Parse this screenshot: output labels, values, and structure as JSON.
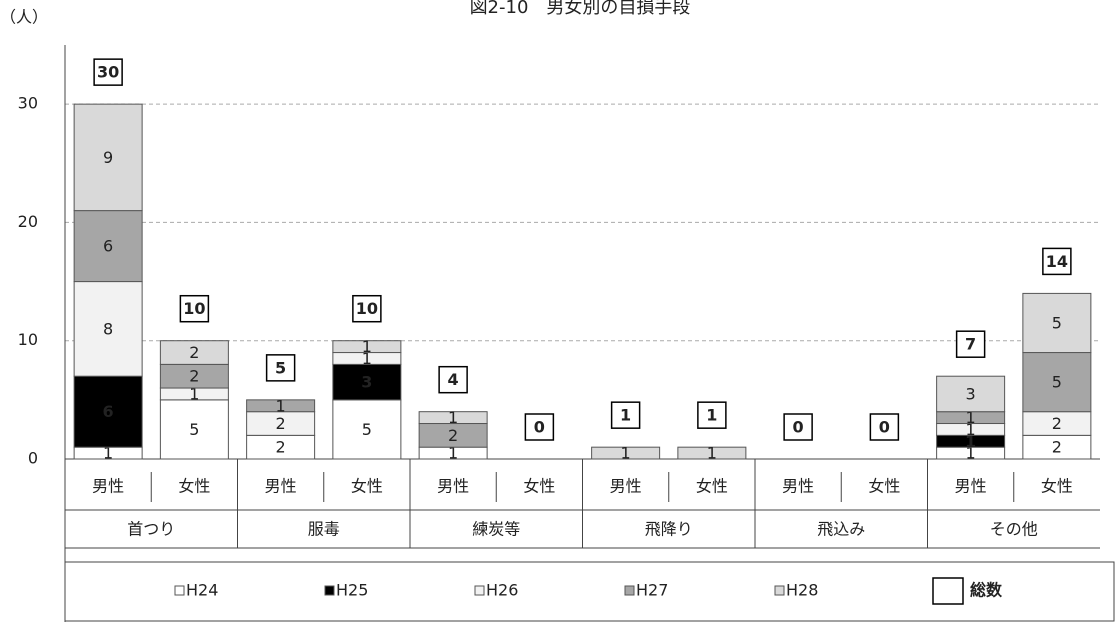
{
  "chart_data": {
    "type": "stacked-bar",
    "title": "図2-10　男女別の自損手段",
    "y_label": "（人）",
    "categories": [
      "男性",
      "女性",
      "男性",
      "女性",
      "男性",
      "女性",
      "男性",
      "女性",
      "男性",
      "女性",
      "男性",
      "女性"
    ],
    "groups": [
      "首つり",
      "服毒",
      "練炭等",
      "飛降り",
      "飛込み",
      "その他"
    ],
    "series": [
      {
        "name": "H24",
        "color": "#ffffff",
        "values": [
          1,
          5,
          2,
          5,
          1,
          0,
          0,
          0,
          0,
          0,
          1,
          2
        ]
      },
      {
        "name": "H25",
        "color": "#000000",
        "values": [
          6,
          0,
          0,
          3,
          0,
          0,
          0,
          0,
          0,
          0,
          1,
          0
        ]
      },
      {
        "name": "H26",
        "color": "#f2f2f2",
        "values": [
          8,
          1,
          2,
          1,
          0,
          0,
          0,
          0,
          0,
          0,
          1,
          2
        ]
      },
      {
        "name": "H27",
        "color": "#a6a6a6",
        "values": [
          6,
          2,
          1,
          0,
          2,
          0,
          0,
          0,
          0,
          0,
          1,
          5
        ]
      },
      {
        "name": "H28",
        "color": "#d9d9d9",
        "values": [
          9,
          2,
          0,
          1,
          1,
          0,
          1,
          1,
          0,
          0,
          3,
          5
        ]
      }
    ],
    "totals_name": "総数",
    "totals": [
      30,
      10,
      5,
      10,
      4,
      0,
      1,
      1,
      0,
      0,
      7,
      14
    ],
    "ylim": [
      0,
      35
    ],
    "yticks": [
      0,
      10,
      20,
      30
    ],
    "grid": true
  }
}
